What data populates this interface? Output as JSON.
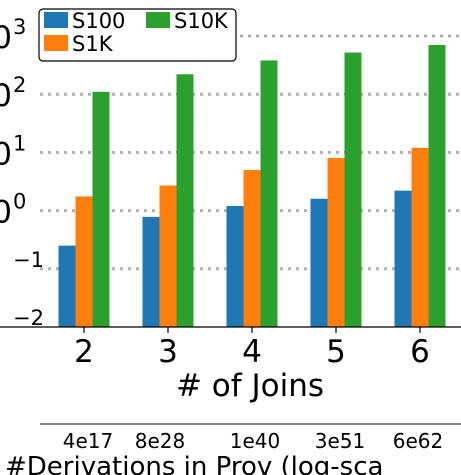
{
  "chart_data": {
    "type": "bar",
    "scale": "log10",
    "categories": [
      "2",
      "3",
      "4",
      "5",
      "6"
    ],
    "series": [
      {
        "name": "S100",
        "color": "#1f77b4",
        "values": [
          0.25,
          0.78,
          1.2,
          1.6,
          2.2
        ]
      },
      {
        "name": "S1K",
        "color": "#ff7f0e",
        "values": [
          1.75,
          2.7,
          5.0,
          8.0,
          12.0
        ]
      },
      {
        "name": "S10K",
        "color": "#2ca02c",
        "values": [
          110,
          220,
          380,
          520,
          700
        ]
      }
    ],
    "ylim": [
      0.01,
      1000
    ],
    "y_tick_labels": [
      {
        "base": "0",
        "exp": "3"
      },
      {
        "base": "0",
        "exp": "2"
      },
      {
        "base": "0",
        "exp": "1"
      },
      {
        "base": "0",
        "exp": "0"
      },
      {
        "base": "",
        "exp": "−1"
      },
      {
        "base": "",
        "exp": "−2"
      }
    ],
    "xlabel": "# of Joins",
    "secondary_x_ticks": [
      "4e17",
      "8e28",
      "1e40",
      "3e51",
      "6e62"
    ],
    "secondary_xlabel": "#Derivations in Prov (log-sca",
    "grid": "horizontal dotted",
    "legend_position": "top-left"
  }
}
